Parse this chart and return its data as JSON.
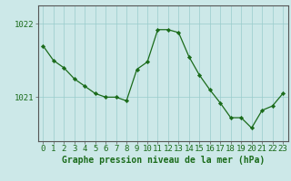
{
  "hours": [
    0,
    1,
    2,
    3,
    4,
    5,
    6,
    7,
    8,
    9,
    10,
    11,
    12,
    13,
    14,
    15,
    16,
    17,
    18,
    19,
    20,
    21,
    22,
    23
  ],
  "pressure": [
    1021.7,
    1021.5,
    1021.4,
    1021.25,
    1021.15,
    1021.05,
    1021.0,
    1021.0,
    1020.95,
    1021.38,
    1021.48,
    1021.92,
    1021.92,
    1021.88,
    1021.55,
    1021.3,
    1021.1,
    1020.92,
    1020.72,
    1020.72,
    1020.58,
    1020.82,
    1020.88,
    1021.05
  ],
  "line_color": "#1a6b1a",
  "marker_color": "#1a6b1a",
  "bg_color": "#cce8e8",
  "grid_color": "#99cccc",
  "axis_color": "#1a6b1a",
  "spine_color": "#555555",
  "ylabel_ticks": [
    1021,
    1022
  ],
  "ylim": [
    1020.4,
    1022.25
  ],
  "xlim": [
    -0.5,
    23.5
  ],
  "xlabel": "Graphe pression niveau de la mer (hPa)",
  "tick_fontsize": 6.5
}
